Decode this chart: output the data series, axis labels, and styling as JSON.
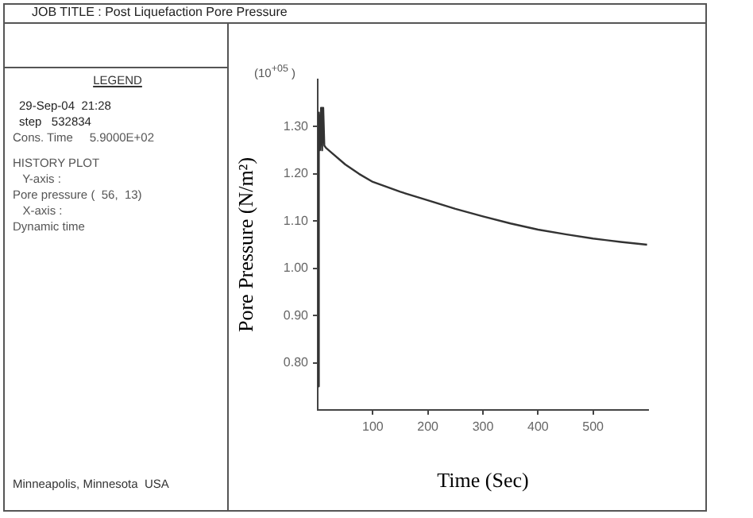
{
  "chart_data": {
    "type": "line",
    "title": "JOB TITLE : Post Liquefaction Pore Pressure",
    "xlabel": "Time (Sec)",
    "ylabel": "Pore Pressure (N/m²)",
    "annotations": [
      "(10$^{+05}$ )",
      "LEGEND",
      "29-Sep-04  21:28",
      "step   532834",
      "Cons. Time     5.9000E+02",
      "HISTORY PLOT",
      "   Y-axis :",
      "Pore pressure (  56,  13)",
      "   X-axis :",
      "Dynamic time",
      "Minneapolis, Minnesota  USA"
    ],
    "x": [
      0,
      2,
      4,
      6,
      8,
      10,
      12,
      15,
      25,
      50,
      75,
      100,
      150,
      200,
      250,
      300,
      350,
      400,
      450,
      500,
      550,
      598
    ],
    "series": [
      {
        "color": "#333333",
        "values": [
          0.75,
          1.33,
          1.25,
          1.34,
          1.25,
          1.34,
          1.26,
          1.255,
          1.245,
          1.22,
          1.2,
          1.183,
          1.162,
          1.144,
          1.126,
          1.11,
          1.095,
          1.082,
          1.072,
          1.063,
          1.056,
          1.05
        ]
      }
    ],
    "xlim": [
      0,
      600
    ],
    "xticks": [
      100,
      200,
      300,
      400,
      500
    ],
    "ylim": [
      0.7,
      1.4
    ],
    "yticks": [
      {
        "value": 0.8,
        "label": "0.80"
      },
      {
        "value": 0.9,
        "label": "0.90"
      },
      {
        "value": 1.0,
        "label": "1.00"
      },
      {
        "value": 1.1,
        "label": "1.10"
      },
      {
        "value": 1.2,
        "label": "1.20"
      },
      {
        "value": 1.3,
        "label": "1.30"
      }
    ],
    "marker": "none",
    "line_style": "solid",
    "legend": false
  }
}
